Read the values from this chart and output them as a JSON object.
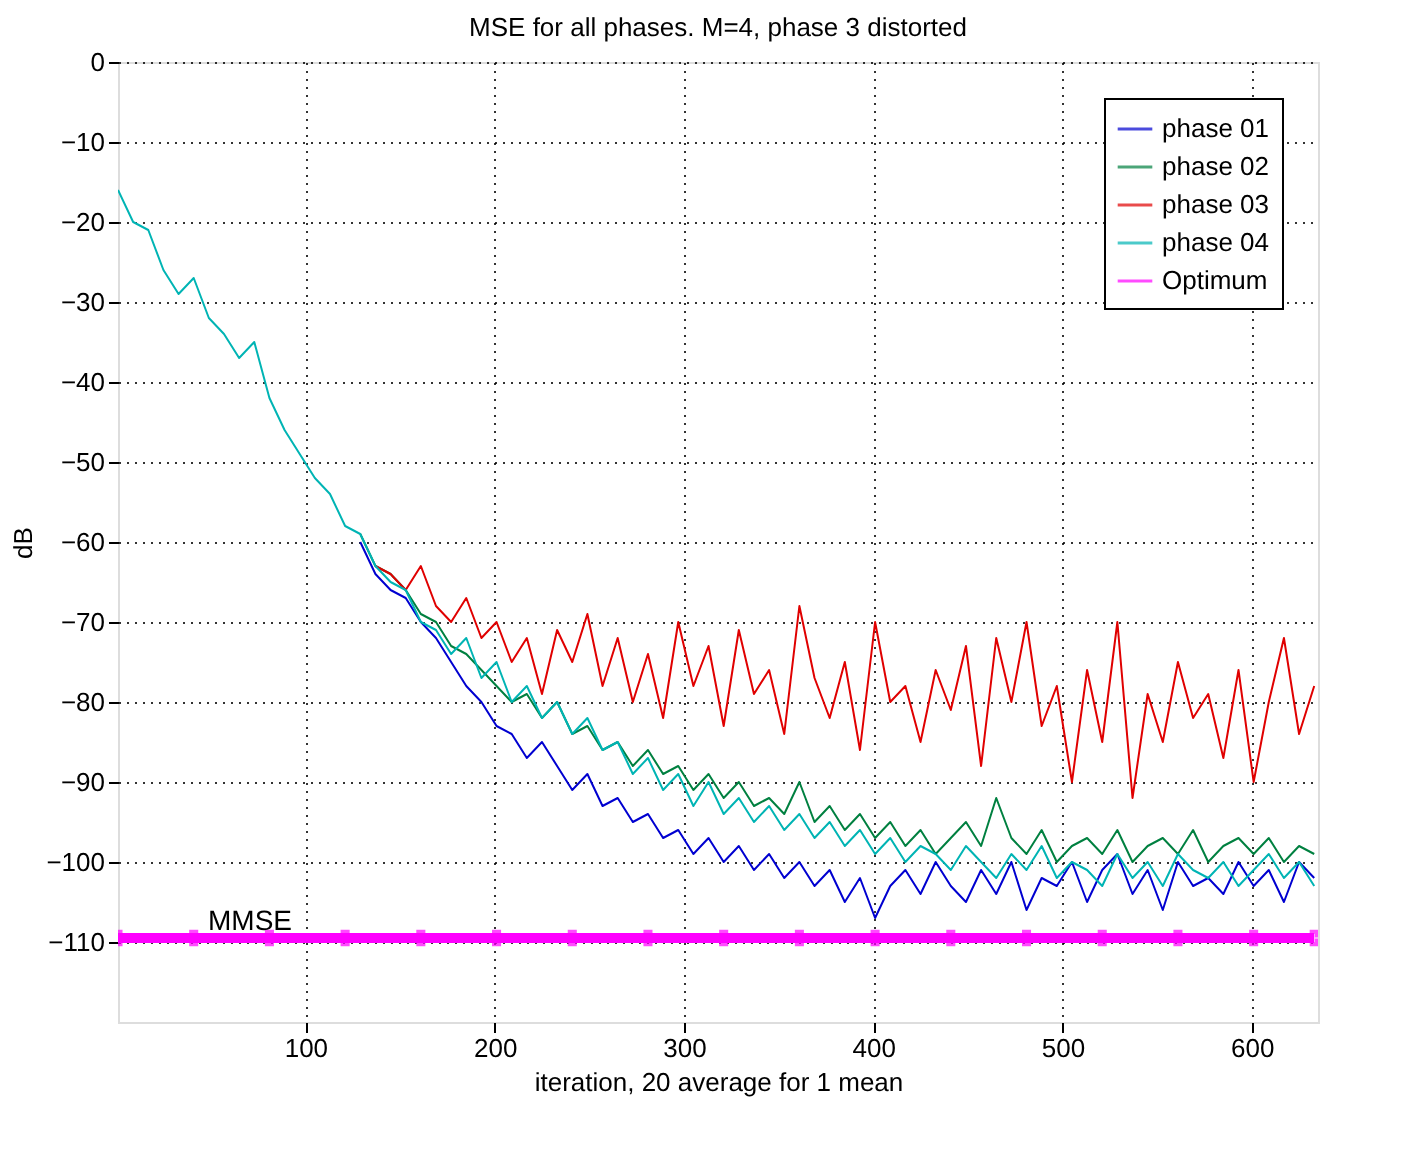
{
  "chart_data": {
    "type": "line",
    "title": "MSE for all phases. M=4, phase 3 distorted",
    "xlabel": "iteration, 20 average for 1 mean",
    "ylabel": "dB",
    "xlim": [
      1,
      635
    ],
    "xticks": [
      100,
      200,
      300,
      400,
      500,
      600
    ],
    "ylim": [
      -120,
      0
    ],
    "yticks": [
      0,
      -10,
      -20,
      -30,
      -40,
      -50,
      -60,
      -70,
      -80,
      -90,
      -100,
      -110
    ],
    "grid": true,
    "legend": "top right",
    "line_style": "solid",
    "annotations": [
      "MMSE"
    ],
    "x": [
      1,
      9,
      17,
      25,
      33,
      41,
      49,
      57,
      65,
      73,
      81,
      89,
      97,
      105,
      113,
      121,
      129,
      137,
      145,
      153,
      161,
      169,
      177,
      185,
      193,
      201,
      209,
      217,
      225,
      233,
      241,
      249,
      257,
      265,
      273,
      281,
      289,
      297,
      305,
      313,
      321,
      329,
      337,
      345,
      353,
      361,
      369,
      377,
      385,
      393,
      401,
      409,
      417,
      425,
      433,
      441,
      449,
      457,
      465,
      473,
      481,
      489,
      497,
      505,
      513,
      521,
      529,
      537,
      545,
      553,
      561,
      569,
      577,
      585,
      593,
      601,
      609,
      617,
      625,
      633
    ],
    "series": [
      {
        "name": "phase 01",
        "color": "#0000d0",
        "values": [
          null,
          null,
          null,
          null,
          null,
          null,
          null,
          null,
          null,
          null,
          null,
          null,
          null,
          null,
          null,
          null,
          -60,
          -64,
          -66,
          -67,
          -70,
          -72,
          -75,
          -78,
          -80,
          -83,
          -84,
          -87,
          -85,
          -88,
          -91,
          -89,
          -93,
          -92,
          -95,
          -94,
          -97,
          -96,
          -99,
          -97,
          -100,
          -98,
          -101,
          -99,
          -102,
          -100,
          -103,
          -101,
          -105,
          -102,
          -107,
          -103,
          -101,
          -104,
          -100,
          -103,
          -105,
          -101,
          -104,
          -100,
          -106,
          -102,
          -103,
          -100,
          -105,
          -101,
          -99,
          -104,
          -101,
          -106,
          -100,
          -103,
          -102,
          -104,
          -100,
          -103,
          -101,
          -105,
          -100,
          -102
        ]
      },
      {
        "name": "phase 02",
        "color": "#008040",
        "values": [
          null,
          null,
          null,
          null,
          null,
          null,
          null,
          null,
          null,
          null,
          null,
          null,
          null,
          null,
          null,
          null,
          -59,
          -63,
          -64,
          -66,
          -69,
          -70,
          -73,
          -74,
          -76,
          -78,
          -80,
          -79,
          -82,
          -80,
          -84,
          -83,
          -86,
          -85,
          -88,
          -86,
          -89,
          -88,
          -91,
          -89,
          -92,
          -90,
          -93,
          -92,
          -94,
          -90,
          -95,
          -93,
          -96,
          -94,
          -97,
          -95,
          -98,
          -96,
          -99,
          -97,
          -95,
          -98,
          -92,
          -97,
          -99,
          -96,
          -100,
          -98,
          -97,
          -99,
          -96,
          -100,
          -98,
          -97,
          -99,
          -96,
          -100,
          -98,
          -97,
          -99,
          -97,
          -100,
          -98,
          -99
        ]
      },
      {
        "name": "phase 03",
        "color": "#e00000",
        "values": [
          null,
          null,
          null,
          null,
          null,
          null,
          null,
          null,
          null,
          null,
          null,
          null,
          null,
          null,
          null,
          null,
          null,
          -63,
          -64,
          -66,
          -63,
          -68,
          -70,
          -67,
          -72,
          -70,
          -75,
          -72,
          -79,
          -71,
          -75,
          -69,
          -78,
          -72,
          -80,
          -74,
          -82,
          -70,
          -78,
          -73,
          -83,
          -71,
          -79,
          -76,
          -84,
          -68,
          -77,
          -82,
          -75,
          -86,
          -70,
          -80,
          -78,
          -85,
          -76,
          -81,
          -73,
          -88,
          -72,
          -80,
          -70,
          -83,
          -78,
          -90,
          -76,
          -85,
          -70,
          -92,
          -79,
          -85,
          -75,
          -82,
          -79,
          -87,
          -76,
          -90,
          -80,
          -72,
          -84,
          -78
        ]
      },
      {
        "name": "phase 04",
        "color": "#00b4b4",
        "values": [
          -16,
          -20,
          -21,
          -26,
          -29,
          -27,
          -32,
          -34,
          -37,
          -35,
          -42,
          -46,
          -49,
          -52,
          -54,
          -58,
          -59,
          -63,
          -65,
          -66,
          -70,
          -71,
          -74,
          -72,
          -77,
          -75,
          -80,
          -78,
          -82,
          -80,
          -84,
          -82,
          -86,
          -85,
          -89,
          -87,
          -91,
          -89,
          -93,
          -90,
          -94,
          -92,
          -95,
          -93,
          -96,
          -94,
          -97,
          -95,
          -98,
          -96,
          -99,
          -97,
          -100,
          -98,
          -99,
          -101,
          -98,
          -100,
          -102,
          -99,
          -101,
          -98,
          -102,
          -100,
          -101,
          -103,
          -99,
          -102,
          -100,
          -103,
          -99,
          -101,
          -102,
          -100,
          -103,
          -101,
          -99,
          -102,
          -100,
          -103
        ]
      },
      {
        "name": "Optimum",
        "color": "#ff00ff",
        "marker": "cross",
        "x": [
          1,
          41,
          81,
          121,
          161,
          201,
          241,
          281,
          321,
          361,
          401,
          441,
          481,
          521,
          561,
          601,
          633
        ],
        "values": [
          -109.5,
          -109.5,
          -109.5,
          -109.5,
          -109.5,
          -109.5,
          -109.5,
          -109.5,
          -109.5,
          -109.5,
          -109.5,
          -109.5,
          -109.5,
          -109.5,
          -109.5,
          -109.5,
          -109.5
        ]
      }
    ]
  }
}
